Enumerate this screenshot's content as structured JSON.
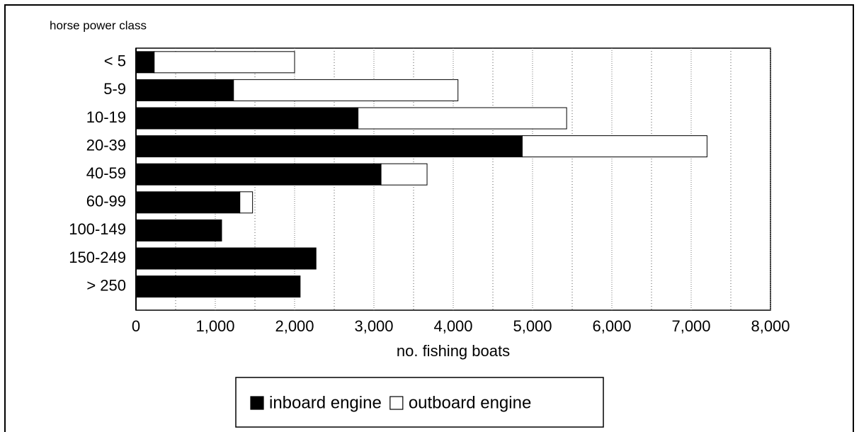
{
  "chart_data": {
    "type": "stacked-bar-horizontal",
    "y_axis_label": "horse power class",
    "x_axis_label": "no. fishing boats",
    "categories": [
      "< 5",
      "5-9",
      "10-19",
      "20-39",
      "40-59",
      "60-99",
      "100-149",
      "150-249",
      "> 250"
    ],
    "series": [
      {
        "name": "inboard engine",
        "color": "#000000",
        "values": [
          230,
          1230,
          2800,
          4870,
          3090,
          1310,
          1080,
          2270,
          2070
        ]
      },
      {
        "name": "outboard engine",
        "color": "#ffffff",
        "values": [
          1770,
          2830,
          2630,
          2330,
          580,
          160,
          0,
          0,
          0
        ]
      }
    ],
    "xlim": [
      0,
      8000
    ],
    "xticks": [
      0,
      {
        "value": 1000,
        "label": "1,000"
      },
      {
        "value": 2000,
        "label": "2,000"
      },
      {
        "value": 3000,
        "label": "3,000"
      },
      {
        "value": 4000,
        "label": "4,000"
      },
      {
        "value": 5000,
        "label": "5,000"
      },
      {
        "value": 6000,
        "label": "6,000"
      },
      {
        "value": 7000,
        "label": "7,000"
      },
      {
        "value": 8000,
        "label": "8,000"
      }
    ],
    "xminorticks": [
      500,
      1500,
      2500,
      3500,
      4500,
      5500,
      6500,
      7500
    ],
    "grid": true,
    "legend": "bottom"
  }
}
